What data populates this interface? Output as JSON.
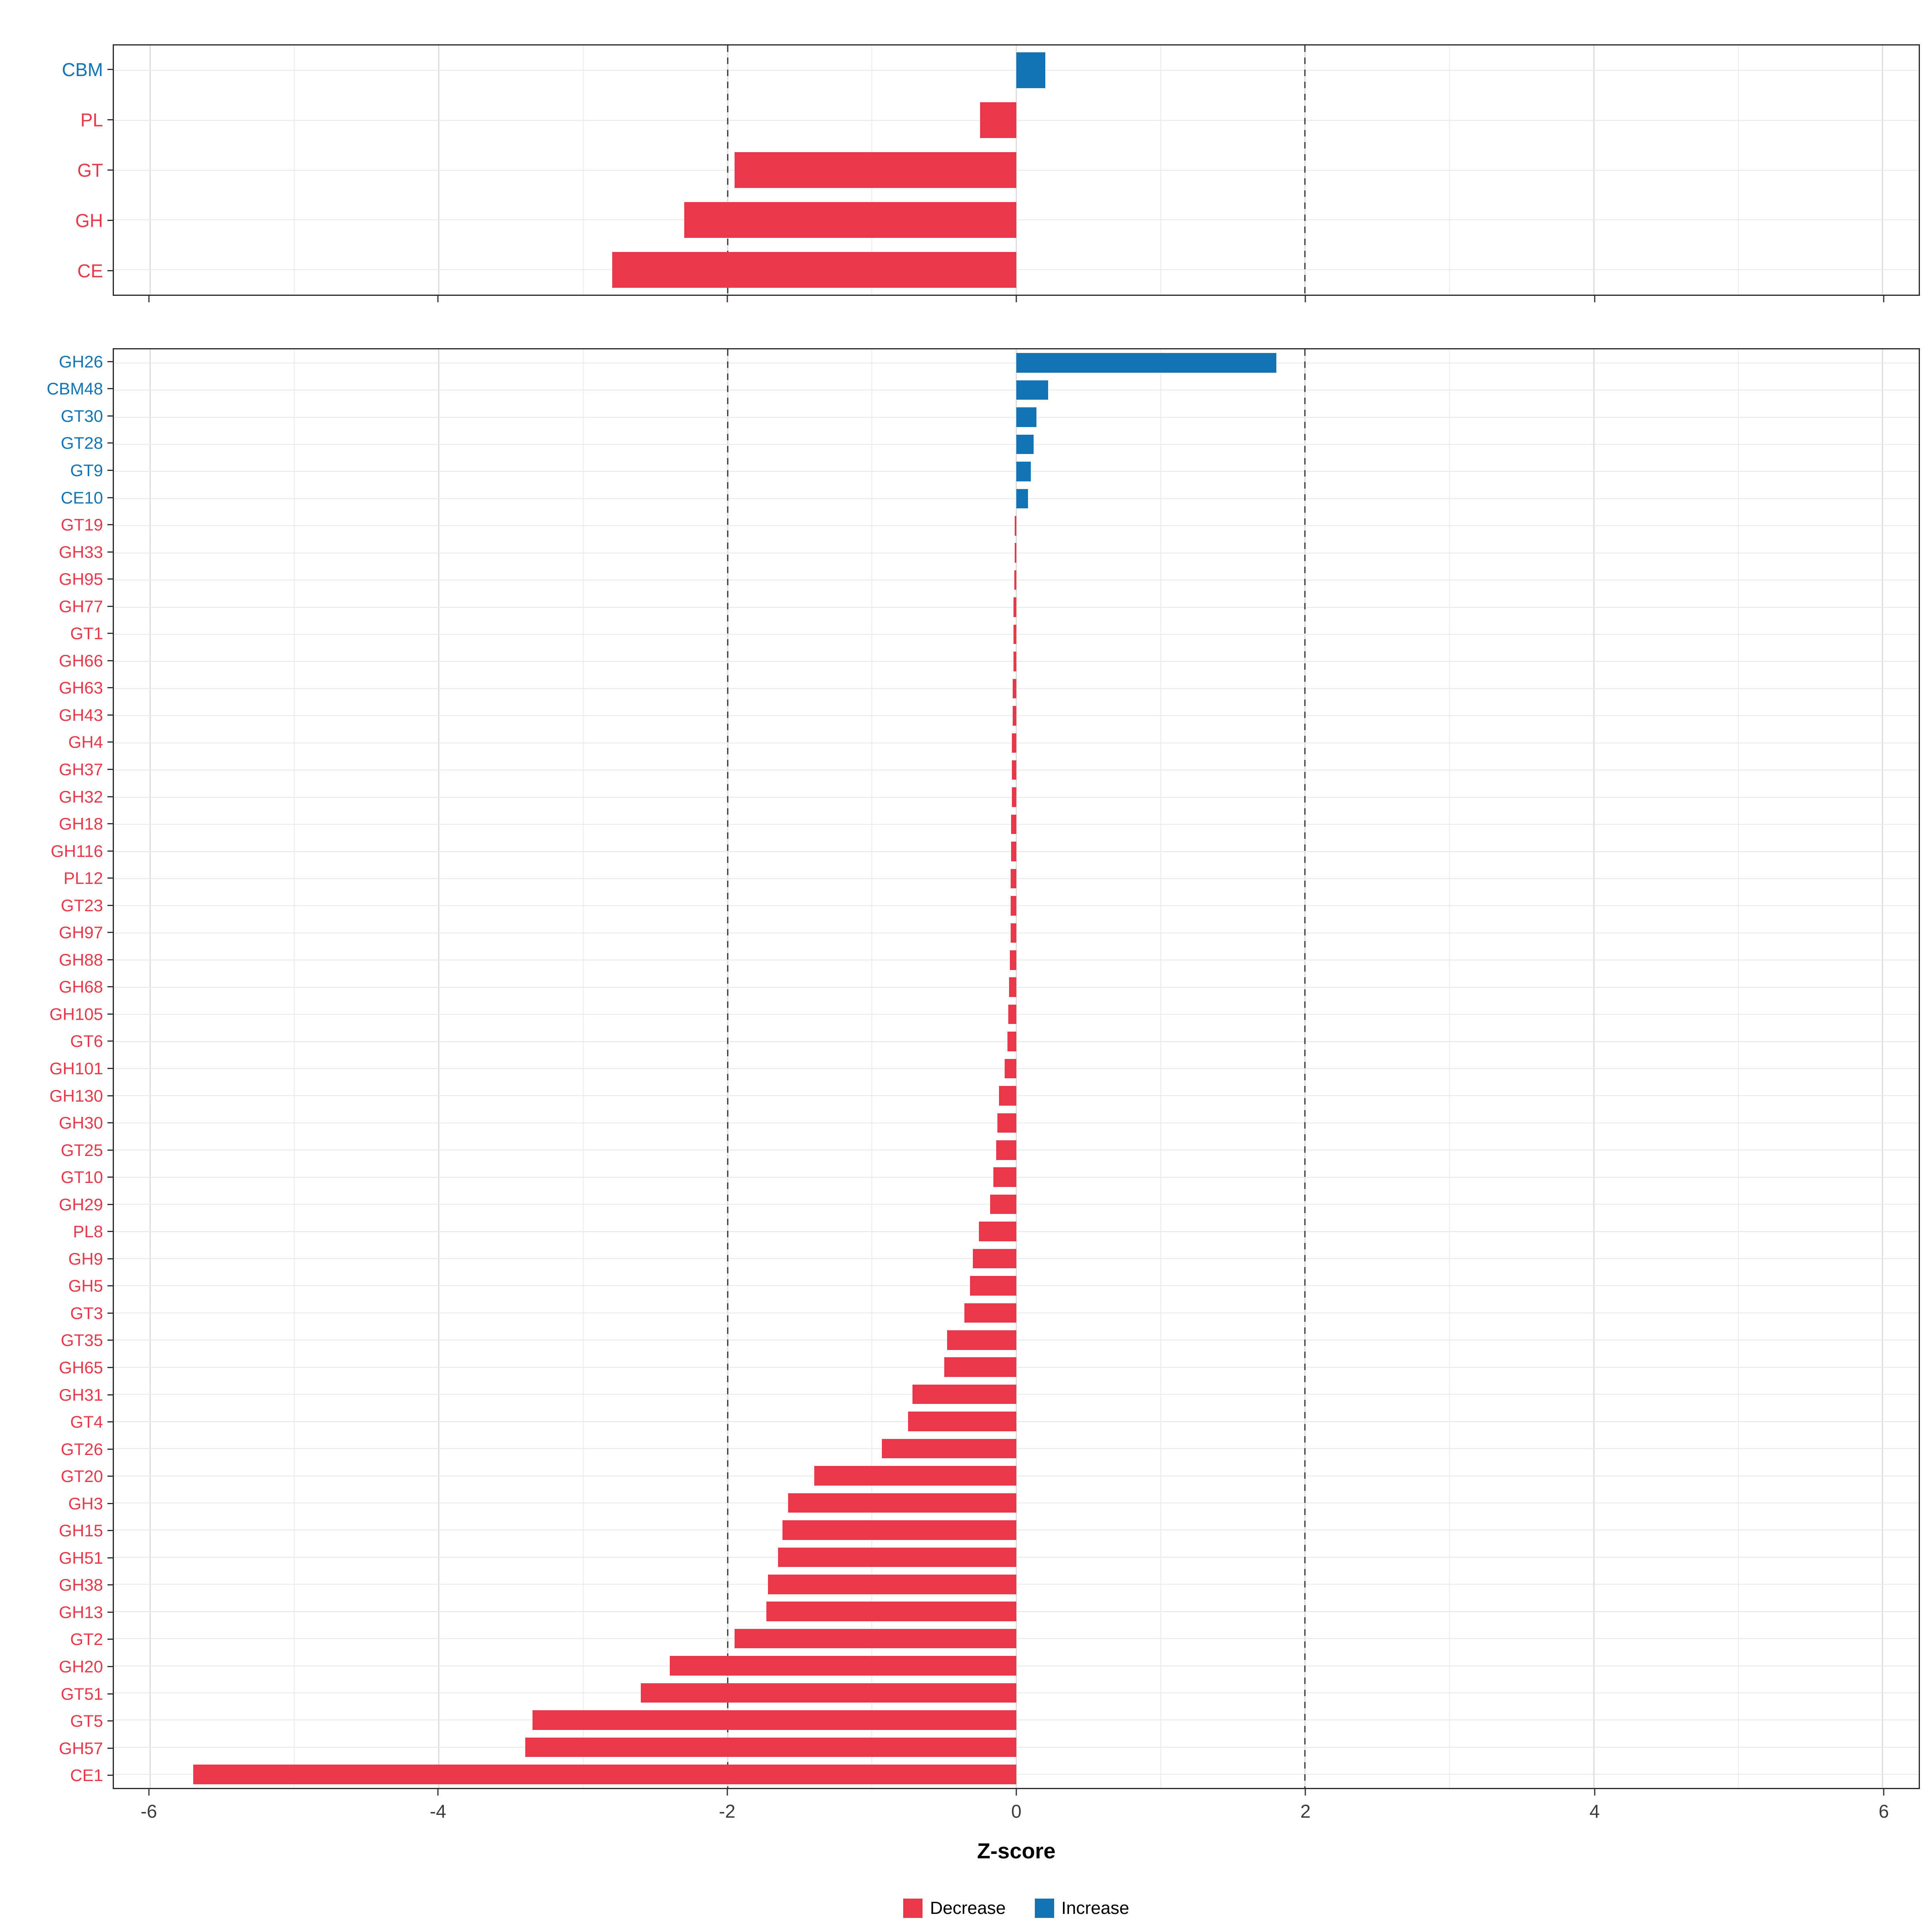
{
  "colors": {
    "decrease": "#E8384A",
    "increase": "#1274B5",
    "grid_major": "#DBDBDB",
    "grid_minor": "#ECECEC",
    "ref_line": "#2F2F2F",
    "panel_border": "#2B2B2B",
    "axis_text": "#3C3C3C",
    "axis_title": "#000000"
  },
  "axis": {
    "title": "Z-score",
    "xlim": [
      -6.25,
      6.25
    ],
    "major_breaks": [
      -6,
      -4,
      -2,
      0,
      2,
      4,
      6
    ],
    "minor_breaks": [
      -5,
      -3,
      -1,
      1,
      3,
      5
    ],
    "tick_labels": [
      "-6",
      "-4",
      "-2",
      "0",
      "2",
      "4",
      "6"
    ],
    "ref_lines": [
      -2,
      2
    ]
  },
  "legend": {
    "items": [
      {
        "label": "Decrease",
        "direction": "decrease"
      },
      {
        "label": "Increase",
        "direction": "increase"
      }
    ]
  },
  "chart_data": [
    {
      "type": "bar",
      "orientation": "horizontal",
      "panel": "cazyme-classes",
      "xlabel": "Z-score",
      "xlim": [
        -6.25,
        6.25
      ],
      "items": [
        {
          "name": "CBM",
          "value": 0.2,
          "direction": "increase"
        },
        {
          "name": "PL",
          "value": -0.25,
          "direction": "decrease"
        },
        {
          "name": "GT",
          "value": -1.95,
          "direction": "decrease"
        },
        {
          "name": "GH",
          "value": -2.3,
          "direction": "decrease"
        },
        {
          "name": "CE",
          "value": -2.8,
          "direction": "decrease"
        }
      ]
    },
    {
      "type": "bar",
      "orientation": "horizontal",
      "panel": "cazyme-families",
      "xlabel": "Z-score",
      "xlim": [
        -6.25,
        6.25
      ],
      "items": [
        {
          "name": "GH26",
          "value": 1.8,
          "direction": "increase"
        },
        {
          "name": "CBM48",
          "value": 0.22,
          "direction": "increase"
        },
        {
          "name": "GT30",
          "value": 0.14,
          "direction": "increase"
        },
        {
          "name": "GT28",
          "value": 0.12,
          "direction": "increase"
        },
        {
          "name": "GT9",
          "value": 0.1,
          "direction": "increase"
        },
        {
          "name": "CE10",
          "value": 0.08,
          "direction": "increase"
        },
        {
          "name": "GT19",
          "value": -0.01,
          "direction": "decrease"
        },
        {
          "name": "GH33",
          "value": -0.01,
          "direction": "decrease"
        },
        {
          "name": "GH95",
          "value": -0.015,
          "direction": "decrease"
        },
        {
          "name": "GH77",
          "value": -0.02,
          "direction": "decrease"
        },
        {
          "name": "GT1",
          "value": -0.02,
          "direction": "decrease"
        },
        {
          "name": "GH66",
          "value": -0.02,
          "direction": "decrease"
        },
        {
          "name": "GH63",
          "value": -0.025,
          "direction": "decrease"
        },
        {
          "name": "GH43",
          "value": -0.025,
          "direction": "decrease"
        },
        {
          "name": "GH4",
          "value": -0.03,
          "direction": "decrease"
        },
        {
          "name": "GH37",
          "value": -0.03,
          "direction": "decrease"
        },
        {
          "name": "GH32",
          "value": -0.03,
          "direction": "decrease"
        },
        {
          "name": "GH18",
          "value": -0.035,
          "direction": "decrease"
        },
        {
          "name": "GH116",
          "value": -0.035,
          "direction": "decrease"
        },
        {
          "name": "PL12",
          "value": -0.04,
          "direction": "decrease"
        },
        {
          "name": "GT23",
          "value": -0.04,
          "direction": "decrease"
        },
        {
          "name": "GH97",
          "value": -0.04,
          "direction": "decrease"
        },
        {
          "name": "GH88",
          "value": -0.045,
          "direction": "decrease"
        },
        {
          "name": "GH68",
          "value": -0.05,
          "direction": "decrease"
        },
        {
          "name": "GH105",
          "value": -0.055,
          "direction": "decrease"
        },
        {
          "name": "GT6",
          "value": -0.06,
          "direction": "decrease"
        },
        {
          "name": "GH101",
          "value": -0.08,
          "direction": "decrease"
        },
        {
          "name": "GH130",
          "value": -0.12,
          "direction": "decrease"
        },
        {
          "name": "GH30",
          "value": -0.13,
          "direction": "decrease"
        },
        {
          "name": "GT25",
          "value": -0.14,
          "direction": "decrease"
        },
        {
          "name": "GT10",
          "value": -0.16,
          "direction": "decrease"
        },
        {
          "name": "GH29",
          "value": -0.18,
          "direction": "decrease"
        },
        {
          "name": "PL8",
          "value": -0.26,
          "direction": "decrease"
        },
        {
          "name": "GH9",
          "value": -0.3,
          "direction": "decrease"
        },
        {
          "name": "GH5",
          "value": -0.32,
          "direction": "decrease"
        },
        {
          "name": "GT3",
          "value": -0.36,
          "direction": "decrease"
        },
        {
          "name": "GT35",
          "value": -0.48,
          "direction": "decrease"
        },
        {
          "name": "GH65",
          "value": -0.5,
          "direction": "decrease"
        },
        {
          "name": "GH31",
          "value": -0.72,
          "direction": "decrease"
        },
        {
          "name": "GT4",
          "value": -0.75,
          "direction": "decrease"
        },
        {
          "name": "GT26",
          "value": -0.93,
          "direction": "decrease"
        },
        {
          "name": "GT20",
          "value": -1.4,
          "direction": "decrease"
        },
        {
          "name": "GH3",
          "value": -1.58,
          "direction": "decrease"
        },
        {
          "name": "GH15",
          "value": -1.62,
          "direction": "decrease"
        },
        {
          "name": "GH51",
          "value": -1.65,
          "direction": "decrease"
        },
        {
          "name": "GH38",
          "value": -1.72,
          "direction": "decrease"
        },
        {
          "name": "GH13",
          "value": -1.73,
          "direction": "decrease"
        },
        {
          "name": "GT2",
          "value": -1.95,
          "direction": "decrease"
        },
        {
          "name": "GH20",
          "value": -2.4,
          "direction": "decrease"
        },
        {
          "name": "GT51",
          "value": -2.6,
          "direction": "decrease"
        },
        {
          "name": "GT5",
          "value": -3.35,
          "direction": "decrease"
        },
        {
          "name": "GH57",
          "value": -3.4,
          "direction": "decrease"
        },
        {
          "name": "CE1",
          "value": -5.7,
          "direction": "decrease"
        }
      ]
    }
  ]
}
